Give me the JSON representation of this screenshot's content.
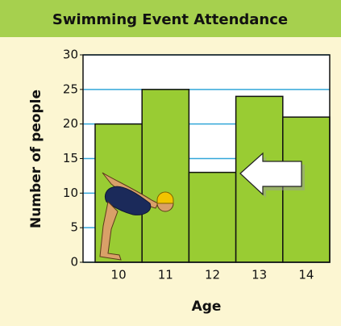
{
  "chart_data": {
    "type": "bar",
    "title": "Swimming Event Attendance",
    "x_label": "Age",
    "y_label": "Number of people",
    "categories": [
      "10",
      "11",
      "12",
      "13",
      "14"
    ],
    "values": [
      20,
      25,
      13,
      24,
      21
    ],
    "color": "#99cc33",
    "ylim": [
      0,
      30
    ],
    "yticks": [
      0,
      5,
      10,
      15,
      20,
      25,
      30
    ],
    "grid": true
  }
}
